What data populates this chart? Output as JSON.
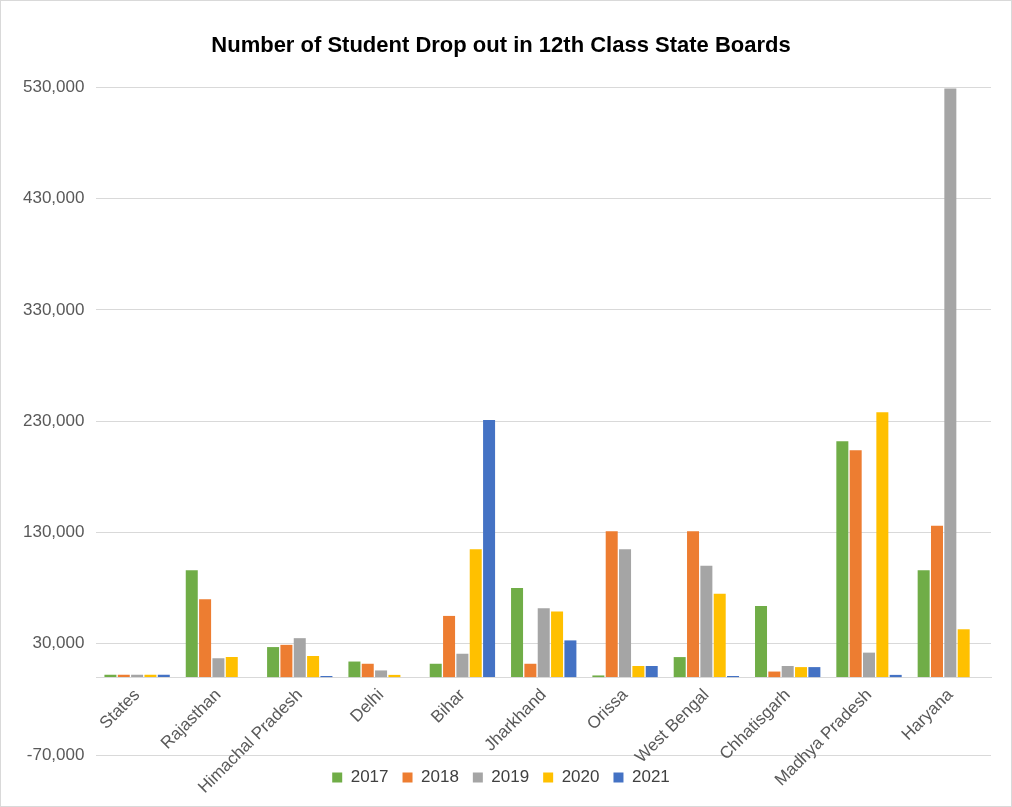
{
  "chart_data": {
    "type": "bar",
    "title": "Number of Student Drop out in 12th Class State Boards",
    "categories": [
      "States",
      "Rajasthan",
      "Himachal Pradesh",
      "Delhi",
      "Bihar",
      "Jharkhand",
      "Orissa",
      "West Bengal",
      "Chhatisgarh",
      "Madhya Pradesh",
      "Haryana"
    ],
    "series": [
      {
        "name": "2017",
        "color": "#70ad47",
        "values": [
          2017,
          96000,
          27000,
          14000,
          12000,
          80000,
          1500,
          18000,
          64000,
          212000,
          96000
        ]
      },
      {
        "name": "2018",
        "color": "#ed7d31",
        "values": [
          2018,
          70000,
          29000,
          12000,
          55000,
          12000,
          131000,
          131000,
          5000,
          204000,
          136000
        ]
      },
      {
        "name": "2019",
        "color": "#a5a5a5",
        "values": [
          2019,
          17000,
          35000,
          6000,
          21000,
          62000,
          115000,
          100000,
          10000,
          22000,
          529000
        ]
      },
      {
        "name": "2020",
        "color": "#ffc000",
        "values": [
          2020,
          18000,
          19000,
          2000,
          115000,
          59000,
          10000,
          75000,
          9000,
          238000,
          43000
        ]
      },
      {
        "name": "2021",
        "color": "#4472c4",
        "values": [
          2021,
          null,
          1000,
          null,
          231000,
          33000,
          10000,
          1000,
          9000,
          2000,
          null
        ]
      }
    ],
    "ylim": [
      -70000,
      530000
    ],
    "yticks": [
      {
        "value": -70000,
        "label": "-70,000"
      },
      {
        "value": 30000,
        "label": "30,000"
      },
      {
        "value": 130000,
        "label": "130,000"
      },
      {
        "value": 230000,
        "label": "230,000"
      },
      {
        "value": 330000,
        "label": "330,000"
      },
      {
        "value": 430000,
        "label": "430,000"
      },
      {
        "value": 530000,
        "label": "530,000"
      }
    ],
    "grid": "y",
    "legend": "bottom"
  }
}
